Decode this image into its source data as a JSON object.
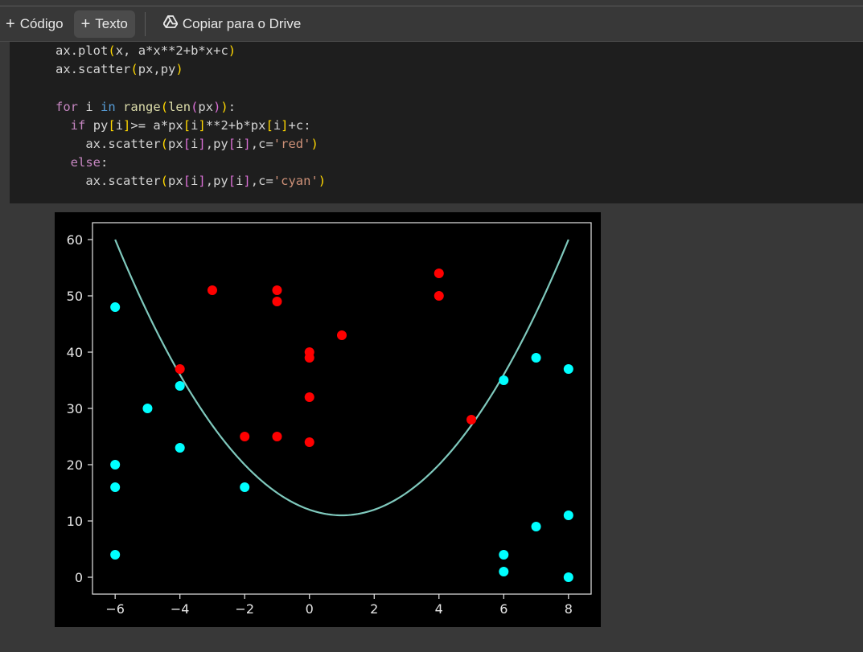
{
  "toolbar": {
    "code_label": "Código",
    "text_label": "Texto",
    "drive_label": "Copiar para o Drive"
  },
  "code_lines": [
    "ax.plot(x, a*x**2+b*x+c)",
    "ax.scatter(px,py)",
    "",
    "for i in range(len(px)):",
    "  if py[i]>= a*px[i]**2+b*px[i]+c:",
    "    ax.scatter(px[i],py[i],c='red')",
    "  else:",
    "    ax.scatter(px[i],py[i],c='cyan')"
  ],
  "chart_data": {
    "type": "scatter",
    "title": "",
    "xlabel": "",
    "ylabel": "",
    "xlim": [
      -6.7,
      8.7
    ],
    "ylim": [
      -3,
      63
    ],
    "xticks": [
      -6,
      -4,
      -2,
      0,
      2,
      4,
      6,
      8
    ],
    "xtick_labels": [
      "−6",
      "−4",
      "−2",
      "0",
      "2",
      "4",
      "6",
      "8"
    ],
    "yticks": [
      0,
      10,
      20,
      30,
      40,
      50,
      60
    ],
    "grid": false,
    "curve": {
      "type": "line",
      "color": "#7fc9bd",
      "x": [
        -6,
        -5,
        -4,
        -3,
        -2,
        -1,
        0,
        1,
        2,
        3,
        4,
        5,
        6,
        7,
        8
      ],
      "y": [
        60,
        47,
        36,
        27,
        20,
        15,
        12,
        11,
        12,
        15,
        20,
        27,
        36,
        47,
        60
      ]
    },
    "series": [
      {
        "color": "#ff0000",
        "x": [
          -4,
          -3,
          -2,
          -1,
          -1,
          -1,
          0,
          0,
          0,
          0,
          1,
          4,
          4,
          5
        ],
        "y": [
          37,
          51,
          25,
          25,
          49,
          51,
          24,
          32,
          39,
          40,
          43,
          50,
          54,
          28
        ]
      },
      {
        "color": "#00ffff",
        "x": [
          -6,
          -6,
          -6,
          -6,
          -5,
          -4,
          -4,
          -2,
          6,
          6,
          6,
          7,
          7,
          8,
          8,
          8
        ],
        "y": [
          48,
          20,
          16,
          4,
          30,
          34,
          23,
          16,
          35,
          4,
          1,
          39,
          9,
          37,
          11,
          0
        ]
      }
    ],
    "colors": {
      "background": "#000000",
      "axes": "#e6e6e6",
      "text": "#e6e6e6"
    }
  }
}
